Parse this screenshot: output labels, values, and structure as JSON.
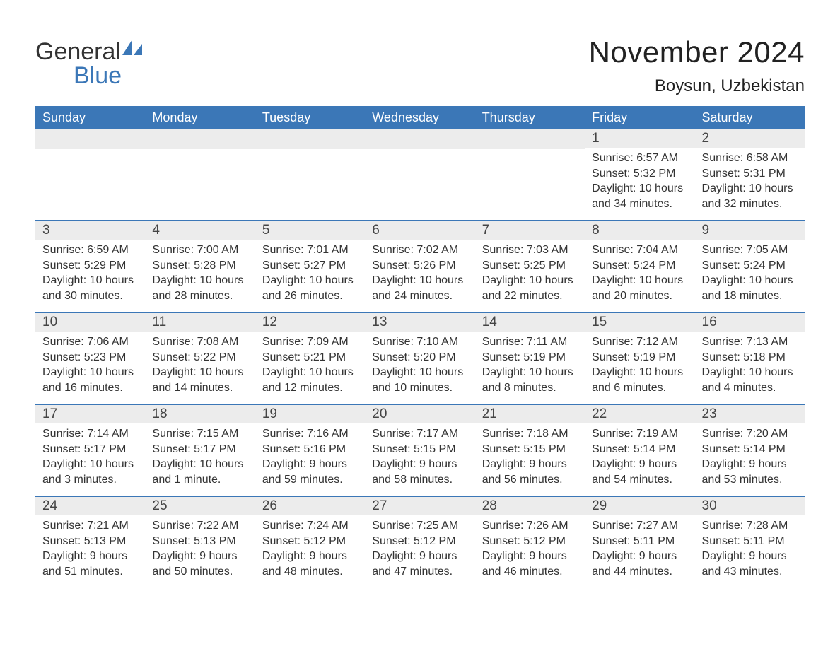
{
  "logo": {
    "text_general": "General",
    "text_blue": "Blue",
    "icon_color": "#3b77b7"
  },
  "title": "November 2024",
  "location": "Boysun, Uzbekistan",
  "colors": {
    "header_bg": "#3b77b7",
    "header_text": "#ffffff",
    "daynum_bg": "#ececec",
    "border": "#3b77b7",
    "body_text": "#333333",
    "page_bg": "#ffffff"
  },
  "typography": {
    "title_fontsize": 42,
    "location_fontsize": 24,
    "weekday_fontsize": 18,
    "daynum_fontsize": 19,
    "body_fontsize": 16,
    "logo_fontsize": 34
  },
  "weekdays": [
    "Sunday",
    "Monday",
    "Tuesday",
    "Wednesday",
    "Thursday",
    "Friday",
    "Saturday"
  ],
  "weeks": [
    [
      null,
      null,
      null,
      null,
      null,
      {
        "num": "1",
        "sunrise": "Sunrise: 6:57 AM",
        "sunset": "Sunset: 5:32 PM",
        "daylight": "Daylight: 10 hours and 34 minutes."
      },
      {
        "num": "2",
        "sunrise": "Sunrise: 6:58 AM",
        "sunset": "Sunset: 5:31 PM",
        "daylight": "Daylight: 10 hours and 32 minutes."
      }
    ],
    [
      {
        "num": "3",
        "sunrise": "Sunrise: 6:59 AM",
        "sunset": "Sunset: 5:29 PM",
        "daylight": "Daylight: 10 hours and 30 minutes."
      },
      {
        "num": "4",
        "sunrise": "Sunrise: 7:00 AM",
        "sunset": "Sunset: 5:28 PM",
        "daylight": "Daylight: 10 hours and 28 minutes."
      },
      {
        "num": "5",
        "sunrise": "Sunrise: 7:01 AM",
        "sunset": "Sunset: 5:27 PM",
        "daylight": "Daylight: 10 hours and 26 minutes."
      },
      {
        "num": "6",
        "sunrise": "Sunrise: 7:02 AM",
        "sunset": "Sunset: 5:26 PM",
        "daylight": "Daylight: 10 hours and 24 minutes."
      },
      {
        "num": "7",
        "sunrise": "Sunrise: 7:03 AM",
        "sunset": "Sunset: 5:25 PM",
        "daylight": "Daylight: 10 hours and 22 minutes."
      },
      {
        "num": "8",
        "sunrise": "Sunrise: 7:04 AM",
        "sunset": "Sunset: 5:24 PM",
        "daylight": "Daylight: 10 hours and 20 minutes."
      },
      {
        "num": "9",
        "sunrise": "Sunrise: 7:05 AM",
        "sunset": "Sunset: 5:24 PM",
        "daylight": "Daylight: 10 hours and 18 minutes."
      }
    ],
    [
      {
        "num": "10",
        "sunrise": "Sunrise: 7:06 AM",
        "sunset": "Sunset: 5:23 PM",
        "daylight": "Daylight: 10 hours and 16 minutes."
      },
      {
        "num": "11",
        "sunrise": "Sunrise: 7:08 AM",
        "sunset": "Sunset: 5:22 PM",
        "daylight": "Daylight: 10 hours and 14 minutes."
      },
      {
        "num": "12",
        "sunrise": "Sunrise: 7:09 AM",
        "sunset": "Sunset: 5:21 PM",
        "daylight": "Daylight: 10 hours and 12 minutes."
      },
      {
        "num": "13",
        "sunrise": "Sunrise: 7:10 AM",
        "sunset": "Sunset: 5:20 PM",
        "daylight": "Daylight: 10 hours and 10 minutes."
      },
      {
        "num": "14",
        "sunrise": "Sunrise: 7:11 AM",
        "sunset": "Sunset: 5:19 PM",
        "daylight": "Daylight: 10 hours and 8 minutes."
      },
      {
        "num": "15",
        "sunrise": "Sunrise: 7:12 AM",
        "sunset": "Sunset: 5:19 PM",
        "daylight": "Daylight: 10 hours and 6 minutes."
      },
      {
        "num": "16",
        "sunrise": "Sunrise: 7:13 AM",
        "sunset": "Sunset: 5:18 PM",
        "daylight": "Daylight: 10 hours and 4 minutes."
      }
    ],
    [
      {
        "num": "17",
        "sunrise": "Sunrise: 7:14 AM",
        "sunset": "Sunset: 5:17 PM",
        "daylight": "Daylight: 10 hours and 3 minutes."
      },
      {
        "num": "18",
        "sunrise": "Sunrise: 7:15 AM",
        "sunset": "Sunset: 5:17 PM",
        "daylight": "Daylight: 10 hours and 1 minute."
      },
      {
        "num": "19",
        "sunrise": "Sunrise: 7:16 AM",
        "sunset": "Sunset: 5:16 PM",
        "daylight": "Daylight: 9 hours and 59 minutes."
      },
      {
        "num": "20",
        "sunrise": "Sunrise: 7:17 AM",
        "sunset": "Sunset: 5:15 PM",
        "daylight": "Daylight: 9 hours and 58 minutes."
      },
      {
        "num": "21",
        "sunrise": "Sunrise: 7:18 AM",
        "sunset": "Sunset: 5:15 PM",
        "daylight": "Daylight: 9 hours and 56 minutes."
      },
      {
        "num": "22",
        "sunrise": "Sunrise: 7:19 AM",
        "sunset": "Sunset: 5:14 PM",
        "daylight": "Daylight: 9 hours and 54 minutes."
      },
      {
        "num": "23",
        "sunrise": "Sunrise: 7:20 AM",
        "sunset": "Sunset: 5:14 PM",
        "daylight": "Daylight: 9 hours and 53 minutes."
      }
    ],
    [
      {
        "num": "24",
        "sunrise": "Sunrise: 7:21 AM",
        "sunset": "Sunset: 5:13 PM",
        "daylight": "Daylight: 9 hours and 51 minutes."
      },
      {
        "num": "25",
        "sunrise": "Sunrise: 7:22 AM",
        "sunset": "Sunset: 5:13 PM",
        "daylight": "Daylight: 9 hours and 50 minutes."
      },
      {
        "num": "26",
        "sunrise": "Sunrise: 7:24 AM",
        "sunset": "Sunset: 5:12 PM",
        "daylight": "Daylight: 9 hours and 48 minutes."
      },
      {
        "num": "27",
        "sunrise": "Sunrise: 7:25 AM",
        "sunset": "Sunset: 5:12 PM",
        "daylight": "Daylight: 9 hours and 47 minutes."
      },
      {
        "num": "28",
        "sunrise": "Sunrise: 7:26 AM",
        "sunset": "Sunset: 5:12 PM",
        "daylight": "Daylight: 9 hours and 46 minutes."
      },
      {
        "num": "29",
        "sunrise": "Sunrise: 7:27 AM",
        "sunset": "Sunset: 5:11 PM",
        "daylight": "Daylight: 9 hours and 44 minutes."
      },
      {
        "num": "30",
        "sunrise": "Sunrise: 7:28 AM",
        "sunset": "Sunset: 5:11 PM",
        "daylight": "Daylight: 9 hours and 43 minutes."
      }
    ]
  ]
}
